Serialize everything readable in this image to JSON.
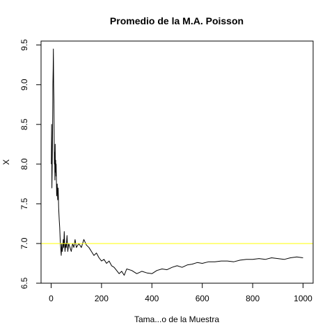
{
  "chart_data": {
    "type": "line",
    "title": "Promedio de la M.A. Poisson",
    "xlabel": "Tama...o de la Muestra",
    "ylabel": "X",
    "xlim": [
      -40,
      1040
    ],
    "ylim": [
      6.5,
      9.55
    ],
    "x_ticks": [
      0,
      200,
      400,
      600,
      800,
      1000
    ],
    "y_ticks": [
      6.5,
      7.0,
      7.5,
      8.0,
      8.5,
      9.0,
      9.5
    ],
    "x_tick_labels": [
      "0",
      "200",
      "400",
      "600",
      "800",
      "1000"
    ],
    "y_tick_labels": [
      "6.5",
      "7.0",
      "7.5",
      "8.0",
      "8.5",
      "9.0",
      "9.5"
    ],
    "grid": false,
    "series": [
      {
        "line_color": "#000000",
        "x": [
          1,
          2,
          3,
          4,
          5,
          6,
          7,
          8,
          9,
          10,
          11,
          12,
          13,
          14,
          15,
          16,
          17,
          18,
          19,
          20,
          22,
          24,
          26,
          28,
          30,
          32,
          34,
          36,
          38,
          40,
          42,
          44,
          46,
          48,
          50,
          52,
          55,
          58,
          60,
          63,
          66,
          70,
          75,
          80,
          85,
          90,
          95,
          100,
          110,
          120,
          130,
          140,
          150,
          160,
          170,
          180,
          190,
          200,
          210,
          220,
          230,
          240,
          250,
          260,
          270,
          280,
          290,
          300,
          320,
          340,
          360,
          380,
          400,
          420,
          440,
          460,
          480,
          500,
          520,
          540,
          560,
          580,
          600,
          625,
          650,
          675,
          700,
          725,
          750,
          775,
          800,
          825,
          850,
          875,
          900,
          925,
          950,
          975,
          1000
        ],
        "values": [
          8.0,
          8.5,
          7.7,
          7.9,
          8.2,
          8.6,
          9.0,
          9.2,
          9.45,
          9.0,
          8.8,
          8.4,
          8.0,
          8.15,
          7.8,
          8.25,
          7.9,
          8.05,
          7.85,
          8.0,
          7.6,
          7.75,
          7.55,
          7.7,
          7.45,
          7.3,
          7.2,
          7.05,
          6.95,
          6.85,
          7.0,
          6.9,
          6.95,
          7.05,
          6.95,
          7.15,
          6.9,
          7.0,
          6.95,
          7.1,
          6.9,
          7.0,
          6.95,
          6.9,
          7.0,
          6.95,
          7.05,
          6.95,
          7.0,
          6.95,
          7.05,
          6.98,
          6.95,
          6.9,
          6.85,
          6.88,
          6.82,
          6.78,
          6.8,
          6.75,
          6.78,
          6.72,
          6.7,
          6.66,
          6.62,
          6.65,
          6.6,
          6.68,
          6.66,
          6.62,
          6.65,
          6.63,
          6.62,
          6.66,
          6.68,
          6.67,
          6.7,
          6.72,
          6.7,
          6.73,
          6.74,
          6.76,
          6.75,
          6.77,
          6.77,
          6.78,
          6.78,
          6.77,
          6.79,
          6.8,
          6.8,
          6.81,
          6.8,
          6.82,
          6.81,
          6.8,
          6.82,
          6.83,
          6.82
        ]
      },
      {
        "line_color": "#ffff00",
        "type": "hline",
        "values": [
          7.0
        ]
      }
    ]
  }
}
